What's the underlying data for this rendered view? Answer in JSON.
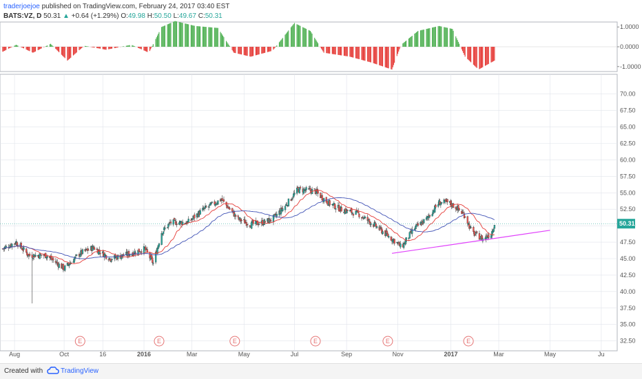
{
  "header": {
    "author": "traderjoejoe",
    "published": "published on TradingView.com, February 24, 2017 03:40 EST"
  },
  "symbol_line": {
    "symbol": "BATS:VZ, D",
    "last": "50.31",
    "change": "+0.64 (+1.29%)",
    "o_label": "O:",
    "o_value": "49.98",
    "h_label": "H:",
    "h_value": "50.50",
    "l_label": "L:",
    "l_value": "49.67",
    "c_label": "C:",
    "c_value": "50.31"
  },
  "footer": {
    "created_with": "Created with",
    "brand": "TradingView"
  },
  "colors": {
    "bull": "#26a69a",
    "bear": "#ef5350",
    "fast_ma": "#e53935",
    "slow_ma": "#3f51b5",
    "trendline": "#e040fb",
    "osc_pos": "#4caf50",
    "osc_neg": "#e53935",
    "earnings": "#e57373",
    "grid": "#e0e3eb",
    "last_badge": "#26a69a"
  },
  "chart_data": [
    {
      "type": "bar",
      "title": "",
      "x_range_months": [
        "Aug 2015",
        "Jul 2017"
      ],
      "ylim": [
        -1.25,
        1.25
      ],
      "y_ticks": [
        "1.0000",
        "0.0000",
        "-1.0000"
      ],
      "series_shape_points": [
        {
          "date": "2015-07-20",
          "v": -0.25
        },
        {
          "date": "2015-08-05",
          "v": 0.1
        },
        {
          "date": "2015-08-25",
          "v": -0.3
        },
        {
          "date": "2015-09-15",
          "v": 0.15
        },
        {
          "date": "2015-10-05",
          "v": -0.7
        },
        {
          "date": "2015-10-25",
          "v": 0.05
        },
        {
          "date": "2015-11-20",
          "v": -0.15
        },
        {
          "date": "2015-12-20",
          "v": 0.1
        },
        {
          "date": "2016-01-10",
          "v": -0.3
        },
        {
          "date": "2016-01-25",
          "v": 1.0
        },
        {
          "date": "2016-02-10",
          "v": 1.3
        },
        {
          "date": "2016-03-05",
          "v": 1.05
        },
        {
          "date": "2016-04-01",
          "v": 0.95
        },
        {
          "date": "2016-04-20",
          "v": -0.3
        },
        {
          "date": "2016-05-10",
          "v": -0.5
        },
        {
          "date": "2016-06-05",
          "v": -0.2
        },
        {
          "date": "2016-07-01",
          "v": 1.2
        },
        {
          "date": "2016-07-20",
          "v": 0.8
        },
        {
          "date": "2016-08-05",
          "v": -0.3
        },
        {
          "date": "2016-09-05",
          "v": -0.5
        },
        {
          "date": "2016-10-01",
          "v": -0.8
        },
        {
          "date": "2016-10-25",
          "v": -1.15
        },
        {
          "date": "2016-11-05",
          "v": 0.1
        },
        {
          "date": "2016-11-25",
          "v": 0.8
        },
        {
          "date": "2016-12-20",
          "v": 1.05
        },
        {
          "date": "2017-01-05",
          "v": 0.9
        },
        {
          "date": "2017-01-20",
          "v": -0.5
        },
        {
          "date": "2017-02-05",
          "v": -1.15
        },
        {
          "date": "2017-02-24",
          "v": -0.7
        }
      ]
    },
    {
      "type": "candlestick",
      "title": "",
      "ylim": [
        31,
        73
      ],
      "y_ticks": [
        "70.00",
        "67.50",
        "65.00",
        "62.50",
        "60.00",
        "57.50",
        "55.00",
        "52.50",
        "50.00",
        "47.50",
        "45.00",
        "42.50",
        "40.00",
        "37.50",
        "35.00",
        "32.50"
      ],
      "x_ticks": [
        "Aug",
        "Oct",
        "16",
        "2016",
        "Mar",
        "May",
        "Jul",
        "Sep",
        "Nov",
        "2017",
        "Mar",
        "May",
        "Ju"
      ],
      "last_price": "50.31",
      "price_shape_points": [
        {
          "date": "2015-07-20",
          "close": 46.5
        },
        {
          "date": "2015-08-05",
          "close": 47.5
        },
        {
          "date": "2015-08-20",
          "close": 45.5
        },
        {
          "date": "2015-09-10",
          "close": 45.5
        },
        {
          "date": "2015-10-01",
          "close": 43.5
        },
        {
          "date": "2015-10-20",
          "close": 45.8
        },
        {
          "date": "2015-11-05",
          "close": 46.7
        },
        {
          "date": "2015-11-25",
          "close": 45.0
        },
        {
          "date": "2015-12-20",
          "close": 45.8
        },
        {
          "date": "2016-01-05",
          "close": 46.5
        },
        {
          "date": "2016-01-15",
          "close": 44.3
        },
        {
          "date": "2016-01-25",
          "close": 49.0
        },
        {
          "date": "2016-02-05",
          "close": 50.5
        },
        {
          "date": "2016-02-25",
          "close": 50.5
        },
        {
          "date": "2016-03-15",
          "close": 52.5
        },
        {
          "date": "2016-04-05",
          "close": 54.0
        },
        {
          "date": "2016-04-15",
          "close": 52.5
        },
        {
          "date": "2016-04-25",
          "close": 51.0
        },
        {
          "date": "2016-05-10",
          "close": 50.2
        },
        {
          "date": "2016-05-25",
          "close": 50.5
        },
        {
          "date": "2016-06-05",
          "close": 51.0
        },
        {
          "date": "2016-06-20",
          "close": 53.0
        },
        {
          "date": "2016-07-05",
          "close": 55.5
        },
        {
          "date": "2016-07-25",
          "close": 55.3
        },
        {
          "date": "2016-08-10",
          "close": 53.5
        },
        {
          "date": "2016-08-25",
          "close": 52.5
        },
        {
          "date": "2016-09-15",
          "close": 51.8
        },
        {
          "date": "2016-10-05",
          "close": 50.0
        },
        {
          "date": "2016-10-20",
          "close": 48.5
        },
        {
          "date": "2016-11-01",
          "close": 47.3
        },
        {
          "date": "2016-11-05",
          "close": 46.7
        },
        {
          "date": "2016-11-20",
          "close": 49.5
        },
        {
          "date": "2016-12-05",
          "close": 51.0
        },
        {
          "date": "2016-12-20",
          "close": 53.5
        },
        {
          "date": "2017-01-01",
          "close": 53.5
        },
        {
          "date": "2017-01-12",
          "close": 52.5
        },
        {
          "date": "2017-01-20",
          "close": 51.5
        },
        {
          "date": "2017-01-28",
          "close": 49.0
        },
        {
          "date": "2017-02-10",
          "close": 48.0
        },
        {
          "date": "2017-02-20",
          "close": 48.8
        },
        {
          "date": "2017-02-24",
          "close": 50.31
        }
      ],
      "earnings_marker_label": "E",
      "earnings_dates": [
        "2015-10-20",
        "2016-01-22",
        "2016-04-21",
        "2016-07-26",
        "2016-10-20",
        "2017-01-24"
      ],
      "trendline": {
        "start": {
          "date": "2016-10-25",
          "price": 45.8
        },
        "end": {
          "date": "2017-05-01",
          "price": 49.3
        }
      }
    }
  ]
}
